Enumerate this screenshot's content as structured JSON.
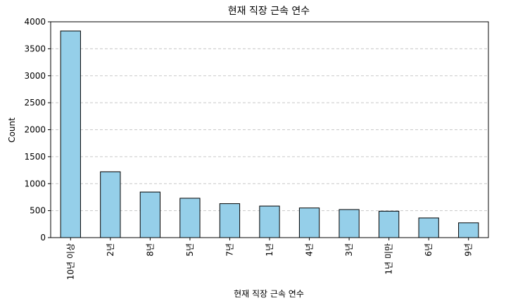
{
  "chart_data": {
    "type": "bar",
    "title": "현재 직장 근속 연수",
    "xlabel": "현재 직장 근속 연수",
    "ylabel": "Count",
    "categories": [
      "10년 이상",
      "2년",
      "8년",
      "5년",
      "7년",
      "1년",
      "4년",
      "3년",
      "1년 미만",
      "6년",
      "9년"
    ],
    "values": [
      3830,
      1220,
      845,
      730,
      630,
      585,
      550,
      520,
      490,
      365,
      275
    ],
    "ylim": [
      0,
      4000
    ],
    "yticks": [
      0,
      500,
      1000,
      1500,
      2000,
      2500,
      3000,
      3500,
      4000
    ],
    "grid": "y-dashed",
    "bar_color": "#95cfe9",
    "edge_color": "#000000",
    "grid_color": "#c8c8c8"
  }
}
